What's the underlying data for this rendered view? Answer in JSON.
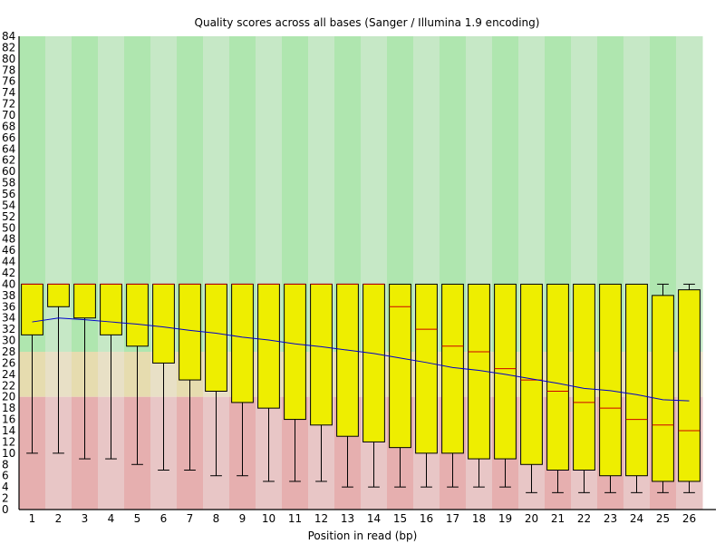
{
  "chart_data": {
    "type": "box",
    "title": "Quality scores across all bases (Sanger / Illumina 1.9 encoding)",
    "xlabel": "Position in read (bp)",
    "ylabel": "",
    "ylim": [
      0,
      84
    ],
    "ytick_step": 2,
    "categories": [
      "1",
      "2",
      "3",
      "4",
      "5",
      "6",
      "7",
      "8",
      "9",
      "10",
      "11",
      "12",
      "13",
      "14",
      "15",
      "16",
      "17",
      "18",
      "19",
      "20",
      "21",
      "22",
      "23",
      "24",
      "25",
      "26"
    ],
    "boxes": [
      {
        "lw": 10,
        "q1": 31,
        "median": 40,
        "q3": 40,
        "uw": 40
      },
      {
        "lw": 10,
        "q1": 36,
        "median": 40,
        "q3": 40,
        "uw": 40
      },
      {
        "lw": 9,
        "q1": 34,
        "median": 40,
        "q3": 40,
        "uw": 40
      },
      {
        "lw": 9,
        "q1": 31,
        "median": 40,
        "q3": 40,
        "uw": 40
      },
      {
        "lw": 8,
        "q1": 29,
        "median": 40,
        "q3": 40,
        "uw": 40
      },
      {
        "lw": 7,
        "q1": 26,
        "median": 40,
        "q3": 40,
        "uw": 40
      },
      {
        "lw": 7,
        "q1": 23,
        "median": 40,
        "q3": 40,
        "uw": 40
      },
      {
        "lw": 6,
        "q1": 21,
        "median": 40,
        "q3": 40,
        "uw": 40
      },
      {
        "lw": 6,
        "q1": 19,
        "median": 40,
        "q3": 40,
        "uw": 40
      },
      {
        "lw": 5,
        "q1": 18,
        "median": 40,
        "q3": 40,
        "uw": 40
      },
      {
        "lw": 5,
        "q1": 16,
        "median": 40,
        "q3": 40,
        "uw": 40
      },
      {
        "lw": 5,
        "q1": 15,
        "median": 40,
        "q3": 40,
        "uw": 40
      },
      {
        "lw": 4,
        "q1": 13,
        "median": 40,
        "q3": 40,
        "uw": 40
      },
      {
        "lw": 4,
        "q1": 12,
        "median": 40,
        "q3": 40,
        "uw": 40
      },
      {
        "lw": 4,
        "q1": 11,
        "median": 36,
        "q3": 40,
        "uw": 40
      },
      {
        "lw": 4,
        "q1": 10,
        "median": 32,
        "q3": 40,
        "uw": 40
      },
      {
        "lw": 4,
        "q1": 10,
        "median": 29,
        "q3": 40,
        "uw": 40
      },
      {
        "lw": 4,
        "q1": 9,
        "median": 28,
        "q3": 40,
        "uw": 40
      },
      {
        "lw": 4,
        "q1": 9,
        "median": 25,
        "q3": 40,
        "uw": 40
      },
      {
        "lw": 3,
        "q1": 8,
        "median": 23,
        "q3": 40,
        "uw": 40
      },
      {
        "lw": 3,
        "q1": 7,
        "median": 21,
        "q3": 40,
        "uw": 40
      },
      {
        "lw": 3,
        "q1": 7,
        "median": 19,
        "q3": 40,
        "uw": 40
      },
      {
        "lw": 3,
        "q1": 6,
        "median": 18,
        "q3": 40,
        "uw": 40
      },
      {
        "lw": 3,
        "q1": 6,
        "median": 16,
        "q3": 40,
        "uw": 40
      },
      {
        "lw": 3,
        "q1": 5,
        "median": 15,
        "q3": 38,
        "uw": 40
      },
      {
        "lw": 3,
        "q1": 5,
        "median": 14,
        "q3": 39,
        "uw": 40
      }
    ],
    "mean_line": [
      33.3,
      34.0,
      33.7,
      33.3,
      32.9,
      32.4,
      31.8,
      31.3,
      30.6,
      30.1,
      29.4,
      28.9,
      28.3,
      27.7,
      26.9,
      26.1,
      25.2,
      24.7,
      24.0,
      23.2,
      22.4,
      21.5,
      21.1,
      20.4,
      19.5,
      19.3
    ],
    "bands": [
      {
        "from": 28,
        "to": 84,
        "name": "good",
        "colors": [
          "#afe6af",
          "#c6e8c6"
        ]
      },
      {
        "from": 20,
        "to": 28,
        "name": "reasonable",
        "colors": [
          "#e6dcaf",
          "#e8e0c6"
        ]
      },
      {
        "from": 0,
        "to": 20,
        "name": "poor",
        "colors": [
          "#e6afaf",
          "#e8c6c6"
        ]
      }
    ],
    "colors": {
      "box_fill": "#eeee00",
      "box_stroke": "#000000",
      "median": "#cc0000",
      "mean_line": "#0000cc",
      "axis": "#000000"
    },
    "grid": false,
    "legend": "none"
  }
}
